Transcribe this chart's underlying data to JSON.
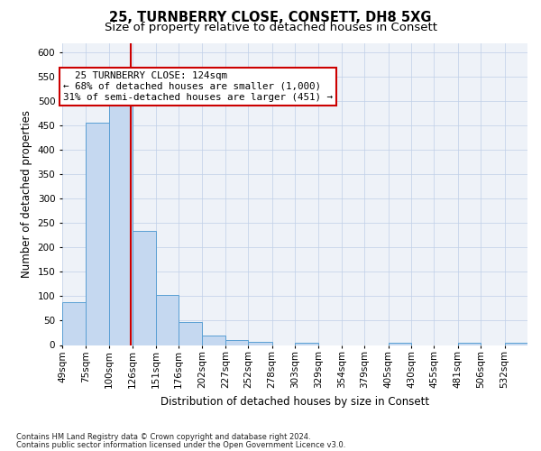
{
  "title1": "25, TURNBERRY CLOSE, CONSETT, DH8 5XG",
  "title2": "Size of property relative to detached houses in Consett",
  "xlabel": "Distribution of detached houses by size in Consett",
  "ylabel": "Number of detached properties",
  "footer1": "Contains HM Land Registry data © Crown copyright and database right 2024.",
  "footer2": "Contains public sector information licensed under the Open Government Licence v3.0.",
  "bar_edges": [
    49,
    75,
    100,
    126,
    151,
    176,
    202,
    227,
    252,
    278,
    303,
    329,
    354,
    379,
    405,
    430,
    455,
    481,
    506,
    532,
    557
  ],
  "bar_heights": [
    88,
    457,
    500,
    234,
    103,
    47,
    19,
    11,
    7,
    0,
    5,
    0,
    0,
    0,
    5,
    0,
    0,
    5,
    0,
    5
  ],
  "bar_color": "#c5d8f0",
  "bar_edge_color": "#5a9fd4",
  "property_size": 124,
  "property_line_color": "#cc0000",
  "annotation_line1": "  25 TURNBERRY CLOSE: 124sqm",
  "annotation_line2": "← 68% of detached houses are smaller (1,000)",
  "annotation_line3": "31% of semi-detached houses are larger (451) →",
  "annotation_box_color": "#ffffff",
  "annotation_box_edge": "#cc0000",
  "ylim": [
    0,
    620
  ],
  "yticks": [
    0,
    50,
    100,
    150,
    200,
    250,
    300,
    350,
    400,
    450,
    500,
    550,
    600
  ],
  "bg_color": "#eef2f8",
  "title1_fontsize": 10.5,
  "title2_fontsize": 9.5,
  "label_fontsize": 8.5,
  "tick_fontsize": 7.5,
  "annot_fontsize": 7.8,
  "footer_fontsize": 6.0
}
